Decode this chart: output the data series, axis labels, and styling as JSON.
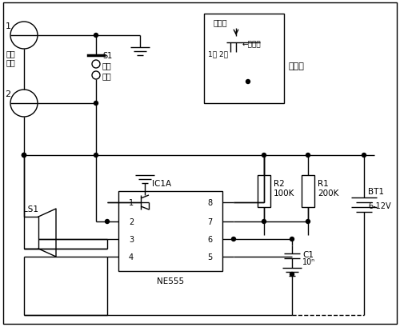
{
  "bg_color": "#ffffff",
  "fig_width": 5.0,
  "fig_height": 4.1,
  "dpi": 100,
  "labels": {
    "num1": "1",
    "num2": "2",
    "vib1": "振动",
    "vib2": "触点",
    "s1": "S1",
    "ctrl1": "控制",
    "ctrl2": "开关",
    "static_piece": "静触片",
    "dynamic_piece": "动触片",
    "points": "1点 2点",
    "diagram": "示意图",
    "ic": "IC1A",
    "ne555": "NE555",
    "ls1": "LS1",
    "r2n": "R2",
    "r2v": "100K",
    "r1n": "R1",
    "r1v": "200K",
    "bt1n": "BT1",
    "bt1v": "6-12V",
    "c1n": "C1",
    "c1v": "10ⁿ"
  }
}
